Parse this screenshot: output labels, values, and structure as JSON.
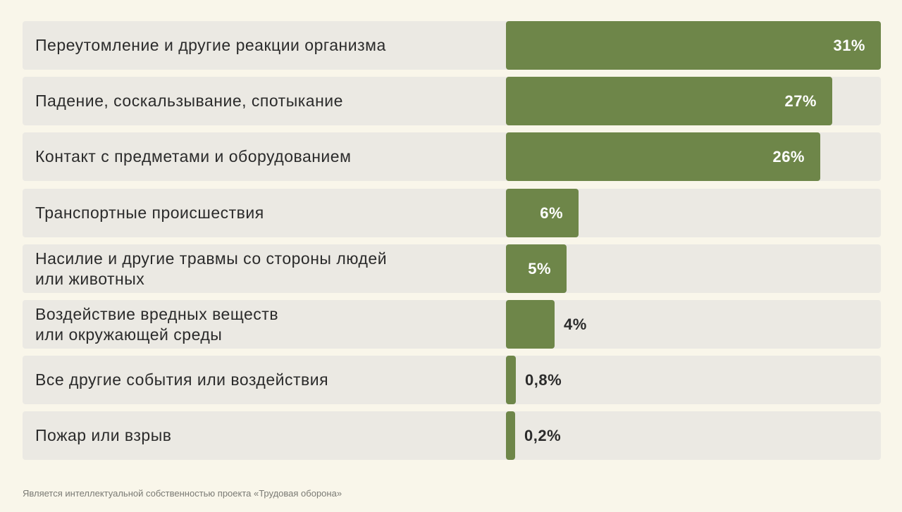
{
  "chart_data": {
    "type": "bar",
    "orientation": "horizontal",
    "categories": [
      "Переутомление и другие реакции организма",
      "Падение, соскальзывание, спотыкание",
      "Контакт с предметами и оборудованием",
      "Транспортные происшествия",
      "Насилие и другие травмы со стороны людей\nили животных",
      "Воздействие вредных веществ\nили окружающей среды",
      "Все другие события или воздействия",
      "Пожар или взрыв"
    ],
    "values": [
      31,
      27,
      26,
      6,
      5,
      4,
      0.8,
      0.2
    ],
    "value_labels": [
      "31%",
      "27%",
      "26%",
      "6%",
      "5%",
      "4%",
      "0,8%",
      "0,2%"
    ],
    "xlim": [
      0,
      31
    ],
    "bar_color": "#6e8649",
    "track_color": "#ebe9e3"
  },
  "footer": "Является интеллектуальной собственностью проекта «Трудовая оборона»"
}
